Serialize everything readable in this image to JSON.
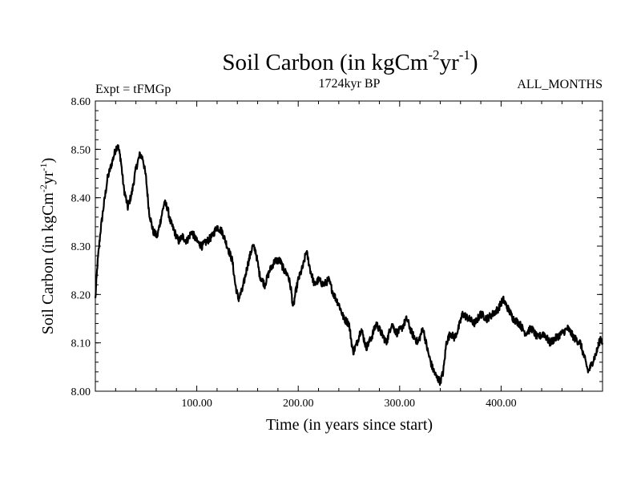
{
  "chart_data": {
    "type": "line",
    "title": {
      "base": "Soil Carbon (in kgCm",
      "sup1": "-2",
      "mid": "yr",
      "sup2": "-1",
      "end": ")"
    },
    "subtitle": "1724kyr BP",
    "left_label": "Expt = tFMGp",
    "right_label": "ALL_MONTHS",
    "xlabel": "Time (in years since start)",
    "ylabel": {
      "base": "Soil Carbon (in kgCm",
      "sup1": "-2",
      "mid": "yr",
      "sup2": "-1",
      "end": ")"
    },
    "xlim": [
      0,
      500
    ],
    "ylim": [
      8.0,
      8.6
    ],
    "x_ticks": [
      {
        "value": 100,
        "label": "100.00"
      },
      {
        "value": 200,
        "label": "200.00"
      },
      {
        "value": 300,
        "label": "300.00"
      },
      {
        "value": 400,
        "label": "400.00"
      }
    ],
    "y_ticks": [
      {
        "value": 8.0,
        "label": "8.00"
      },
      {
        "value": 8.1,
        "label": "8.10"
      },
      {
        "value": 8.2,
        "label": "8.20"
      },
      {
        "value": 8.3,
        "label": "8.30"
      },
      {
        "value": 8.4,
        "label": "8.40"
      },
      {
        "value": 8.5,
        "label": "8.50"
      },
      {
        "value": 8.6,
        "label": "8.60"
      }
    ],
    "series": [
      {
        "name": "Soil Carbon",
        "color": "#000000",
        "x": [
          0,
          2,
          5,
          8,
          12,
          16,
          20,
          22,
          25,
          28,
          32,
          36,
          40,
          44,
          47,
          50,
          53,
          57,
          61,
          64,
          68,
          71,
          74,
          78,
          82,
          86,
          90,
          95,
          100,
          105,
          110,
          115,
          120,
          125,
          130,
          135,
          138,
          141,
          145,
          150,
          155,
          158,
          162,
          167,
          172,
          177,
          182,
          186,
          190,
          193,
          195,
          197,
          200,
          205,
          208,
          212,
          216,
          220,
          225,
          230,
          235,
          240,
          245,
          250,
          254,
          258,
          262,
          267,
          272,
          277,
          282,
          287,
          292,
          297,
          302,
          307,
          312,
          318,
          323,
          328,
          332,
          336,
          340,
          343,
          346,
          350,
          354,
          358,
          362,
          368,
          374,
          380,
          386,
          392,
          397,
          402,
          407,
          412,
          418,
          424,
          430,
          436,
          442,
          448,
          454,
          460,
          466,
          472,
          478,
          482,
          486,
          490,
          494,
          498,
          500
        ],
        "y": [
          8.19,
          8.26,
          8.33,
          8.38,
          8.44,
          8.47,
          8.5,
          8.51,
          8.48,
          8.42,
          8.38,
          8.41,
          8.46,
          8.49,
          8.48,
          8.44,
          8.37,
          8.33,
          8.32,
          8.35,
          8.39,
          8.38,
          8.35,
          8.33,
          8.31,
          8.32,
          8.31,
          8.33,
          8.31,
          8.3,
          8.31,
          8.32,
          8.34,
          8.33,
          8.3,
          8.27,
          8.22,
          8.19,
          8.21,
          8.26,
          8.3,
          8.29,
          8.24,
          8.22,
          8.25,
          8.27,
          8.27,
          8.25,
          8.24,
          8.21,
          8.17,
          8.2,
          8.23,
          8.26,
          8.29,
          8.25,
          8.22,
          8.23,
          8.22,
          8.23,
          8.2,
          8.18,
          8.15,
          8.14,
          8.08,
          8.1,
          8.13,
          8.09,
          8.11,
          8.14,
          8.12,
          8.1,
          8.14,
          8.12,
          8.13,
          8.15,
          8.12,
          8.1,
          8.13,
          8.08,
          8.05,
          8.03,
          8.02,
          8.04,
          8.1,
          8.12,
          8.11,
          8.13,
          8.16,
          8.15,
          8.14,
          8.16,
          8.15,
          8.16,
          8.17,
          8.19,
          8.17,
          8.15,
          8.14,
          8.12,
          8.13,
          8.11,
          8.12,
          8.1,
          8.11,
          8.12,
          8.13,
          8.11,
          8.1,
          8.07,
          8.04,
          8.06,
          8.08,
          8.11,
          8.1
        ]
      }
    ]
  }
}
